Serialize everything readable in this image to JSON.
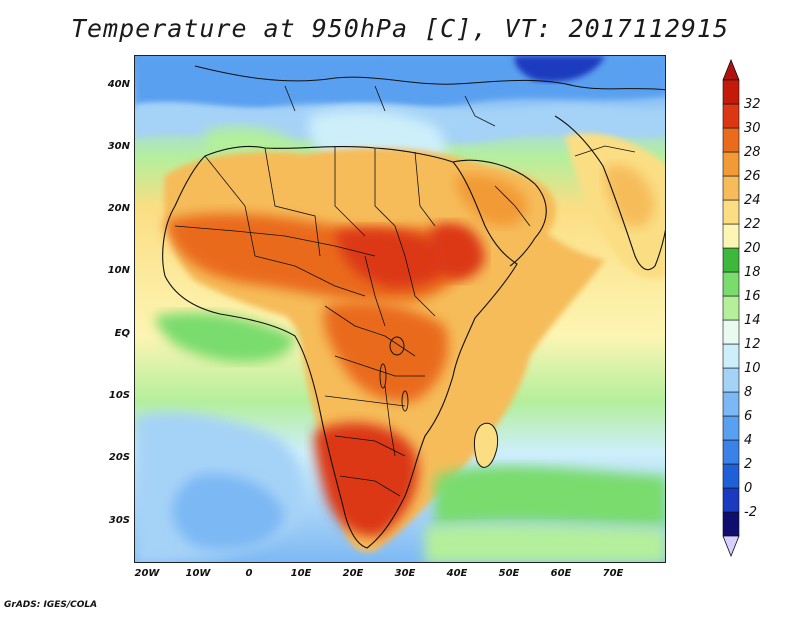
{
  "title": "Temperature at 950hPa [C], VT: 2017112915",
  "footer": "GrADS: IGES/COLA",
  "axes": {
    "lat_labels": [
      "40N",
      "30N",
      "20N",
      "10N",
      "EQ",
      "10S",
      "20S",
      "30S"
    ],
    "lon_labels": [
      "20W",
      "10W",
      "0",
      "10E",
      "20E",
      "30E",
      "40E",
      "50E",
      "60E",
      "70E"
    ]
  },
  "colorbar": {
    "levels": [
      "-2",
      "0",
      "2",
      "4",
      "6",
      "8",
      "10",
      "12",
      "14",
      "16",
      "18",
      "20",
      "22",
      "24",
      "26",
      "28",
      "30",
      "32"
    ],
    "colors": [
      "#0e0e6e",
      "#1a3bbf",
      "#2060d6",
      "#3a82e8",
      "#5aa0f0",
      "#7cb8f4",
      "#a5d2f7",
      "#cdeffa",
      "#e9fbf1",
      "#b4ef9c",
      "#79dc6d",
      "#3db83c",
      "#fdf5b3",
      "#fbde84",
      "#f6bc5a",
      "#f29a36",
      "#ea6b1c",
      "#dc3714",
      "#c31a0a"
    ],
    "under_color": "#d8d0ff",
    "over_color": "#b01212"
  }
}
